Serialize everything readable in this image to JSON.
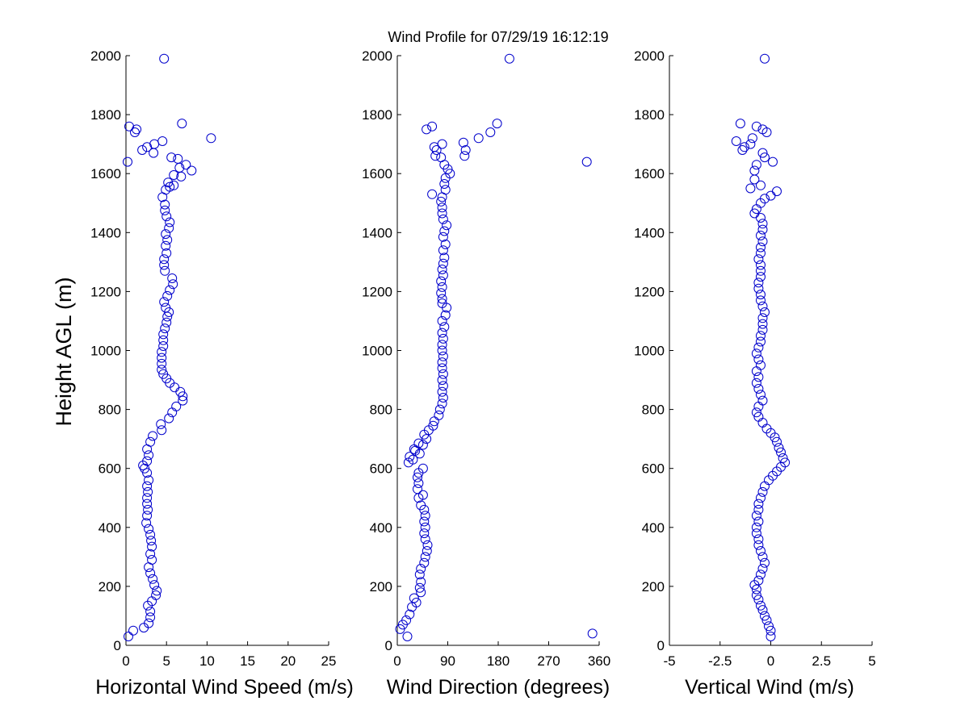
{
  "figure": {
    "title": "Wind Profile for  07/29/19 16:12:19"
  },
  "style": {
    "marker_color": "#0000cc",
    "axis_color": "#000000",
    "background": "#ffffff"
  },
  "chart_data": [
    {
      "type": "scatter",
      "xlabel": "Horizontal Wind Speed (m/s)",
      "ylabel": "Height AGL (m)",
      "xlim": [
        0,
        25
      ],
      "ylim": [
        0,
        2000
      ],
      "xticks": [
        "0",
        "5",
        "10",
        "15",
        "20",
        "25"
      ],
      "xtick_values": [
        0,
        5,
        10,
        15,
        20,
        25
      ],
      "yticks": [
        "0",
        "200",
        "400",
        "600",
        "800",
        "1000",
        "1200",
        "1400",
        "1600",
        "1800",
        "2000"
      ],
      "ytick_values": [
        0,
        200,
        400,
        600,
        800,
        1000,
        1200,
        1400,
        1600,
        1800,
        2000
      ],
      "grid": false,
      "points": [
        [
          0.3,
          30
        ],
        [
          0.9,
          50
        ],
        [
          2.2,
          60
        ],
        [
          2.8,
          75
        ],
        [
          3.0,
          95
        ],
        [
          3.0,
          115
        ],
        [
          2.7,
          135
        ],
        [
          3.2,
          150
        ],
        [
          3.7,
          170
        ],
        [
          3.8,
          185
        ],
        [
          3.5,
          205
        ],
        [
          3.3,
          225
        ],
        [
          3.0,
          245
        ],
        [
          2.8,
          265
        ],
        [
          3.2,
          290
        ],
        [
          3.0,
          310
        ],
        [
          3.2,
          335
        ],
        [
          3.1,
          355
        ],
        [
          3.0,
          375
        ],
        [
          2.8,
          395
        ],
        [
          2.5,
          415
        ],
        [
          2.6,
          440
        ],
        [
          2.7,
          460
        ],
        [
          2.6,
          480
        ],
        [
          2.6,
          500
        ],
        [
          2.7,
          520
        ],
        [
          2.6,
          540
        ],
        [
          2.8,
          560
        ],
        [
          2.6,
          585
        ],
        [
          2.3,
          600
        ],
        [
          2.1,
          610
        ],
        [
          2.6,
          625
        ],
        [
          2.8,
          645
        ],
        [
          2.6,
          665
        ],
        [
          3.0,
          690
        ],
        [
          3.3,
          710
        ],
        [
          4.4,
          730
        ],
        [
          4.3,
          750
        ],
        [
          5.3,
          770
        ],
        [
          5.7,
          790
        ],
        [
          6.2,
          810
        ],
        [
          7.0,
          830
        ],
        [
          7.0,
          845
        ],
        [
          6.7,
          860
        ],
        [
          6.0,
          875
        ],
        [
          5.4,
          890
        ],
        [
          5.0,
          905
        ],
        [
          4.6,
          920
        ],
        [
          4.4,
          935
        ],
        [
          4.4,
          955
        ],
        [
          4.4,
          975
        ],
        [
          4.4,
          995
        ],
        [
          4.6,
          1015
        ],
        [
          4.6,
          1035
        ],
        [
          4.6,
          1055
        ],
        [
          4.8,
          1075
        ],
        [
          5.0,
          1095
        ],
        [
          5.1,
          1115
        ],
        [
          5.3,
          1130
        ],
        [
          4.9,
          1145
        ],
        [
          4.7,
          1165
        ],
        [
          5.1,
          1185
        ],
        [
          5.4,
          1205
        ],
        [
          5.8,
          1225
        ],
        [
          5.7,
          1245
        ],
        [
          4.8,
          1270
        ],
        [
          4.7,
          1290
        ],
        [
          4.7,
          1310
        ],
        [
          5.0,
          1330
        ],
        [
          4.9,
          1355
        ],
        [
          5.1,
          1375
        ],
        [
          4.9,
          1395
        ],
        [
          5.3,
          1415
        ],
        [
          5.4,
          1435
        ],
        [
          5.0,
          1455
        ],
        [
          4.8,
          1475
        ],
        [
          4.8,
          1495
        ],
        [
          4.5,
          1520
        ],
        [
          4.9,
          1545
        ],
        [
          5.4,
          1555
        ],
        [
          5.9,
          1560
        ],
        [
          5.2,
          1570
        ],
        [
          6.8,
          1590
        ],
        [
          5.9,
          1595
        ],
        [
          8.1,
          1610
        ],
        [
          6.6,
          1620
        ],
        [
          7.4,
          1630
        ],
        [
          6.4,
          1650
        ],
        [
          5.6,
          1655
        ],
        [
          0.2,
          1640
        ],
        [
          3.4,
          1670
        ],
        [
          2.0,
          1680
        ],
        [
          2.6,
          1690
        ],
        [
          3.5,
          1700
        ],
        [
          4.5,
          1710
        ],
        [
          10.5,
          1720
        ],
        [
          1.1,
          1740
        ],
        [
          1.3,
          1750
        ],
        [
          0.4,
          1760
        ],
        [
          6.9,
          1770
        ],
        [
          4.7,
          1990
        ]
      ]
    },
    {
      "type": "scatter",
      "xlabel": "Wind Direction (degrees)",
      "ylabel": "",
      "xlim": [
        0,
        360
      ],
      "ylim": [
        0,
        2000
      ],
      "xticks": [
        "0",
        "90",
        "180",
        "270",
        "360"
      ],
      "xtick_values": [
        0,
        90,
        180,
        270,
        360
      ],
      "yticks": [
        "0",
        "200",
        "400",
        "600",
        "800",
        "1000",
        "1200",
        "1400",
        "1600",
        "1800",
        "2000"
      ],
      "ytick_values": [
        0,
        200,
        400,
        600,
        800,
        1000,
        1200,
        1400,
        1600,
        1800,
        2000
      ],
      "grid": false,
      "points": [
        [
          18,
          30
        ],
        [
          5,
          55
        ],
        [
          10,
          70
        ],
        [
          16,
          85
        ],
        [
          22,
          105
        ],
        [
          26,
          130
        ],
        [
          34,
          145
        ],
        [
          30,
          160
        ],
        [
          42,
          180
        ],
        [
          40,
          195
        ],
        [
          42,
          215
        ],
        [
          40,
          240
        ],
        [
          42,
          260
        ],
        [
          48,
          280
        ],
        [
          50,
          300
        ],
        [
          53,
          320
        ],
        [
          54,
          340
        ],
        [
          50,
          360
        ],
        [
          48,
          380
        ],
        [
          50,
          400
        ],
        [
          48,
          420
        ],
        [
          50,
          440
        ],
        [
          48,
          460
        ],
        [
          42,
          475
        ],
        [
          38,
          500
        ],
        [
          46,
          510
        ],
        [
          36,
          530
        ],
        [
          38,
          550
        ],
        [
          36,
          570
        ],
        [
          38,
          585
        ],
        [
          46,
          600
        ],
        [
          20,
          620
        ],
        [
          28,
          630
        ],
        [
          22,
          640
        ],
        [
          40,
          650
        ],
        [
          32,
          660
        ],
        [
          30,
          665
        ],
        [
          46,
          680
        ],
        [
          38,
          685
        ],
        [
          52,
          700
        ],
        [
          48,
          715
        ],
        [
          56,
          730
        ],
        [
          64,
          745
        ],
        [
          66,
          760
        ],
        [
          74,
          780
        ],
        [
          76,
          800
        ],
        [
          80,
          820
        ],
        [
          82,
          840
        ],
        [
          80,
          860
        ],
        [
          82,
          880
        ],
        [
          80,
          900
        ],
        [
          82,
          920
        ],
        [
          80,
          940
        ],
        [
          80,
          960
        ],
        [
          82,
          980
        ],
        [
          80,
          1000
        ],
        [
          80,
          1020
        ],
        [
          82,
          1040
        ],
        [
          80,
          1060
        ],
        [
          84,
          1080
        ],
        [
          80,
          1100
        ],
        [
          86,
          1120
        ],
        [
          88,
          1145
        ],
        [
          80,
          1160
        ],
        [
          80,
          1175
        ],
        [
          78,
          1195
        ],
        [
          80,
          1215
        ],
        [
          78,
          1235
        ],
        [
          82,
          1255
        ],
        [
          80,
          1275
        ],
        [
          82,
          1295
        ],
        [
          84,
          1315
        ],
        [
          82,
          1340
        ],
        [
          86,
          1360
        ],
        [
          82,
          1385
        ],
        [
          84,
          1405
        ],
        [
          88,
          1425
        ],
        [
          82,
          1445
        ],
        [
          80,
          1465
        ],
        [
          80,
          1485
        ],
        [
          78,
          1505
        ],
        [
          80,
          1520
        ],
        [
          62,
          1530
        ],
        [
          86,
          1545
        ],
        [
          84,
          1565
        ],
        [
          86,
          1585
        ],
        [
          94,
          1600
        ],
        [
          90,
          1615
        ],
        [
          84,
          1630
        ],
        [
          78,
          1655
        ],
        [
          68,
          1660
        ],
        [
          70,
          1680
        ],
        [
          66,
          1690
        ],
        [
          80,
          1700
        ],
        [
          120,
          1660
        ],
        [
          122,
          1680
        ],
        [
          118,
          1705
        ],
        [
          145,
          1720
        ],
        [
          166,
          1740
        ],
        [
          178,
          1770
        ],
        [
          52,
          1750
        ],
        [
          62,
          1760
        ],
        [
          338,
          1640
        ],
        [
          200,
          1990
        ],
        [
          348,
          40
        ]
      ]
    },
    {
      "type": "scatter",
      "xlabel": "Vertical Wind (m/s)",
      "ylabel": "",
      "xlim": [
        -5,
        5
      ],
      "ylim": [
        0,
        2000
      ],
      "xticks": [
        "-5",
        "-2.5",
        "0",
        "2.5",
        "5"
      ],
      "xtick_values": [
        -5,
        -2.5,
        0,
        2.5,
        5
      ],
      "yticks": [
        "0",
        "200",
        "400",
        "600",
        "800",
        "1000",
        "1200",
        "1400",
        "1600",
        "1800",
        "2000"
      ],
      "ytick_values": [
        0,
        200,
        400,
        600,
        800,
        1000,
        1200,
        1400,
        1600,
        1800,
        2000
      ],
      "grid": false,
      "points": [
        [
          0.0,
          30
        ],
        [
          0.0,
          50
        ],
        [
          -0.1,
          65
        ],
        [
          -0.2,
          85
        ],
        [
          -0.3,
          100
        ],
        [
          -0.4,
          120
        ],
        [
          -0.5,
          135
        ],
        [
          -0.6,
          155
        ],
        [
          -0.7,
          170
        ],
        [
          -0.7,
          190
        ],
        [
          -0.8,
          205
        ],
        [
          -0.6,
          220
        ],
        [
          -0.5,
          240
        ],
        [
          -0.4,
          260
        ],
        [
          -0.3,
          280
        ],
        [
          -0.4,
          300
        ],
        [
          -0.5,
          320
        ],
        [
          -0.6,
          340
        ],
        [
          -0.6,
          360
        ],
        [
          -0.7,
          380
        ],
        [
          -0.7,
          400
        ],
        [
          -0.6,
          420
        ],
        [
          -0.7,
          440
        ],
        [
          -0.6,
          460
        ],
        [
          -0.6,
          480
        ],
        [
          -0.5,
          500
        ],
        [
          -0.4,
          520
        ],
        [
          -0.3,
          540
        ],
        [
          -0.1,
          560
        ],
        [
          0.1,
          575
        ],
        [
          0.3,
          590
        ],
        [
          0.5,
          605
        ],
        [
          0.7,
          620
        ],
        [
          0.6,
          635
        ],
        [
          0.5,
          655
        ],
        [
          0.4,
          670
        ],
        [
          0.3,
          690
        ],
        [
          0.2,
          705
        ],
        [
          0.0,
          720
        ],
        [
          -0.2,
          735
        ],
        [
          -0.4,
          755
        ],
        [
          -0.6,
          775
        ],
        [
          -0.7,
          790
        ],
        [
          -0.6,
          810
        ],
        [
          -0.4,
          830
        ],
        [
          -0.5,
          850
        ],
        [
          -0.6,
          870
        ],
        [
          -0.7,
          890
        ],
        [
          -0.6,
          910
        ],
        [
          -0.7,
          930
        ],
        [
          -0.5,
          950
        ],
        [
          -0.6,
          970
        ],
        [
          -0.7,
          990
        ],
        [
          -0.6,
          1010
        ],
        [
          -0.5,
          1030
        ],
        [
          -0.5,
          1050
        ],
        [
          -0.4,
          1070
        ],
        [
          -0.4,
          1090
        ],
        [
          -0.4,
          1110
        ],
        [
          -0.3,
          1130
        ],
        [
          -0.4,
          1150
        ],
        [
          -0.5,
          1170
        ],
        [
          -0.5,
          1190
        ],
        [
          -0.6,
          1210
        ],
        [
          -0.6,
          1230
        ],
        [
          -0.5,
          1250
        ],
        [
          -0.5,
          1270
        ],
        [
          -0.5,
          1290
        ],
        [
          -0.6,
          1310
        ],
        [
          -0.5,
          1330
        ],
        [
          -0.5,
          1350
        ],
        [
          -0.4,
          1370
        ],
        [
          -0.5,
          1390
        ],
        [
          -0.4,
          1410
        ],
        [
          -0.4,
          1430
        ],
        [
          -0.5,
          1450
        ],
        [
          -0.8,
          1465
        ],
        [
          -0.7,
          1480
        ],
        [
          -0.5,
          1500
        ],
        [
          -0.3,
          1515
        ],
        [
          0.0,
          1525
        ],
        [
          0.3,
          1540
        ],
        [
          -1.0,
          1550
        ],
        [
          -0.5,
          1560
        ],
        [
          -0.8,
          1580
        ],
        [
          -0.8,
          1610
        ],
        [
          -0.7,
          1630
        ],
        [
          -0.3,
          1655
        ],
        [
          0.1,
          1640
        ],
        [
          -0.4,
          1670
        ],
        [
          -1.4,
          1680
        ],
        [
          -1.3,
          1690
        ],
        [
          -1.7,
          1710
        ],
        [
          -1.0,
          1700
        ],
        [
          -0.9,
          1720
        ],
        [
          -0.2,
          1740
        ],
        [
          -0.7,
          1760
        ],
        [
          -1.5,
          1770
        ],
        [
          -0.4,
          1750
        ],
        [
          -0.3,
          1990
        ]
      ]
    }
  ]
}
